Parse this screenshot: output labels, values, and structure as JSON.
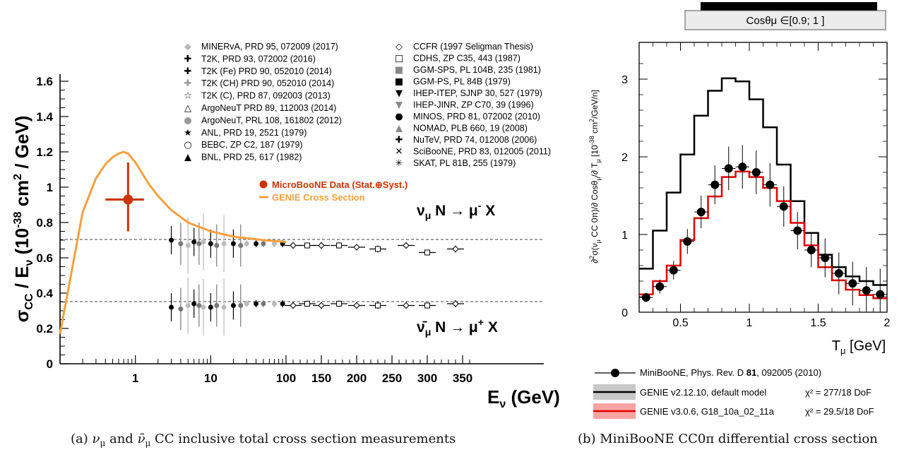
{
  "caption_a": "(a) νμ and ν̄μ CC inclusive total cross section measurements",
  "caption_b": "(b) MiniBooNE CC0π differential cross section",
  "chart_data": [
    {
      "type": "scatter",
      "x_scale": "log below 100 GeV, linear above",
      "xlabel": "Eν (GeV)",
      "ylabel": "σCC / Eν (10⁻³⁸ cm² / GeV)",
      "xlim": [
        0.1,
        370
      ],
      "ylim": [
        0,
        1.6
      ],
      "x_ticks": [
        "1",
        "10",
        "100",
        "150",
        "200",
        "250",
        "300",
        "350"
      ],
      "y_ticks": [
        "0",
        "0.2",
        "0.4",
        "0.6",
        "0.8",
        "1",
        "1.2",
        "1.4",
        "1.6"
      ],
      "reference_lines": [
        0.68,
        0.335
      ],
      "labels": {
        "nu": "νμ N → μ⁻ X",
        "nubar": "ν̄μ N → μ⁺ X"
      },
      "legend_left": [
        "MINERvA, PRD 95, 072009 (2017)",
        "T2K, PRD 93, 072002 (2016)",
        "T2K (Fe) PRD 90, 052010 (2014)",
        "T2K (CH) PRD 90, 052010 (2014)",
        "T2K (C), PRD 87, 092003 (2013)",
        "ArgoNeuT PRD 89, 112003 (2014)",
        "ArgoNeuT, PRL 108, 161802 (2012)",
        "ANL, PRD 19, 2521 (1979)",
        "BEBC, ZP C2, 187 (1979)",
        "BNL, PRD 25, 617 (1982)"
      ],
      "legend_right": [
        "CCFR (1997 Seligman Thesis)",
        "CDHS, ZP C35, 443 (1987)",
        "GGM-SPS, PL 104B, 235 (1981)",
        "GGM-PS, PL 84B (1979)",
        "IHEP-ITEP, SJNP 30, 527 (1979)",
        "IHEP-JINR, ZP C70, 39 (1996)",
        "MINOS, PRD 81, 072002 (2010)",
        "NOMAD, PLB 660, 19 (2008)",
        "NuTeV, PRD 74, 012008 (2006)",
        "SciBooNE, PRD 83, 012005 (2011)",
        "SKAT, PL 81B, 255 (1979)"
      ],
      "legend_highlight": [
        "MicroBooNE Data (Stat.⊕Syst.)",
        "GENIE Cross Section"
      ],
      "microboone": {
        "x": 0.8,
        "y": 0.93,
        "x_err": [
          0.4,
          1.3
        ],
        "y_err": [
          0.75,
          1.14
        ]
      },
      "genie_curve": {
        "x": [
          0.1,
          0.2,
          0.3,
          0.4,
          0.5,
          0.6,
          0.7,
          0.8,
          1.0,
          1.5,
          2,
          3,
          5,
          10,
          20,
          50,
          100
        ],
        "y": [
          0.17,
          0.86,
          1.05,
          1.13,
          1.17,
          1.19,
          1.2,
          1.19,
          1.14,
          1.02,
          0.95,
          0.87,
          0.8,
          0.75,
          0.72,
          0.7,
          0.69
        ]
      },
      "nu_points": {
        "x": [
          3,
          4,
          5,
          6,
          7,
          8,
          10,
          12,
          15,
          20,
          25,
          30,
          40,
          50,
          70,
          90,
          110,
          130,
          150,
          175,
          200,
          230,
          270,
          300,
          340
        ],
        "y": [
          0.7,
          0.68,
          0.67,
          0.69,
          0.68,
          0.69,
          0.68,
          0.67,
          0.68,
          0.68,
          0.67,
          0.68,
          0.68,
          0.68,
          0.68,
          0.68,
          0.67,
          0.67,
          0.67,
          0.67,
          0.66,
          0.65,
          0.67,
          0.63,
          0.65
        ]
      },
      "nubar_points": {
        "x": [
          3,
          4,
          5,
          6,
          7,
          8,
          10,
          12,
          15,
          20,
          25,
          30,
          40,
          50,
          70,
          90,
          110,
          130,
          150,
          175,
          200,
          230,
          270,
          300,
          340
        ],
        "y": [
          0.32,
          0.31,
          0.33,
          0.34,
          0.33,
          0.32,
          0.32,
          0.33,
          0.32,
          0.33,
          0.33,
          0.34,
          0.34,
          0.34,
          0.34,
          0.34,
          0.33,
          0.34,
          0.33,
          0.34,
          0.33,
          0.33,
          0.33,
          0.33,
          0.34
        ]
      }
    },
    {
      "type": "line",
      "header": "Cosθμ ∈[0.9; 1 ]",
      "xlabel": "Tμ [GeV]",
      "ylabel": "∂²σ(νμ CC 0π)/∂ Cosθμ/∂ Tμ [10⁻³⁸ cm²/GeV/n]",
      "xlim": [
        0.2,
        2.0
      ],
      "ylim": [
        0,
        3.4
      ],
      "x_ticks": [
        "0.5",
        "1",
        "1.5",
        "2"
      ],
      "y_ticks": [
        "0",
        "1",
        "2",
        "3"
      ],
      "bin_edges": [
        0.2,
        0.3,
        0.4,
        0.5,
        0.6,
        0.7,
        0.8,
        0.9,
        1.0,
        1.1,
        1.2,
        1.3,
        1.4,
        1.5,
        1.6,
        1.7,
        1.8,
        1.9,
        2.0
      ],
      "series": [
        {
          "name": "MiniBooNE, Phys. Rev. D 81, 092005 (2010)",
          "x": [
            0.25,
            0.35,
            0.45,
            0.55,
            0.65,
            0.75,
            0.85,
            0.95,
            1.05,
            1.15,
            1.25,
            1.35,
            1.45,
            1.55,
            1.65,
            1.75,
            1.85,
            1.95
          ],
          "y": [
            0.19,
            0.33,
            0.54,
            0.91,
            1.29,
            1.64,
            1.85,
            1.87,
            1.8,
            1.64,
            1.36,
            1.05,
            0.8,
            0.7,
            0.5,
            0.37,
            0.28,
            0.23
          ],
          "err": [
            0.06,
            0.09,
            0.12,
            0.16,
            0.21,
            0.25,
            0.28,
            0.28,
            0.28,
            0.28,
            0.26,
            0.24,
            0.22,
            0.25,
            0.27,
            0.28,
            0.3,
            0.33
          ]
        },
        {
          "name": "GENIE v2.12.10, default model",
          "values": [
            0.56,
            1.05,
            1.54,
            2.03,
            2.53,
            2.85,
            3.01,
            2.97,
            2.74,
            2.38,
            1.9,
            1.43,
            1.02,
            0.74,
            0.58,
            0.46,
            0.4,
            0.35
          ]
        },
        {
          "name": "GENIE v3.0.6, G18_10a_02_11a",
          "values": [
            0.23,
            0.4,
            0.6,
            0.93,
            1.21,
            1.49,
            1.74,
            1.81,
            1.74,
            1.6,
            1.43,
            1.15,
            0.86,
            0.58,
            0.41,
            0.29,
            0.22,
            0.18
          ]
        }
      ],
      "legend": [
        {
          "label": "MiniBooNE, Phys. Rev. D ",
          "bold": "81",
          "rest": ", 092005 (2010)",
          "chi2": ""
        },
        {
          "label": "GENIE v2.12.10, default model",
          "chi2": "χ² = 277/18 DoF"
        },
        {
          "label": "GENIE v3.0.6, G18_10a_02_11a",
          "chi2": "χ² = 29.5/18 DoF"
        }
      ],
      "colors": {
        "genie_v2": "#000000",
        "genie_v3": "#e00000",
        "data": "#000000"
      }
    }
  ],
  "colors": {
    "genie_curve": "#f4a03e",
    "microboone": "#cc3300",
    "grey": "#999999"
  }
}
